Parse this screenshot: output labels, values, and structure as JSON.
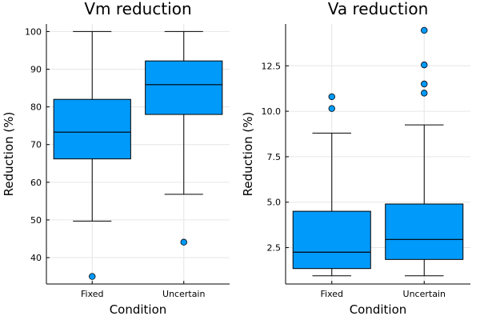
{
  "chart_data": [
    {
      "type": "box",
      "title": "Vm reduction",
      "xlabel": "Condition",
      "ylabel": "Reduction (%)",
      "categories": [
        "Fixed",
        "Uncertain"
      ],
      "ylim": [
        33,
        102
      ],
      "yticks": [
        40,
        50,
        60,
        70,
        80,
        90,
        100
      ],
      "ytick_labels": [
        "40",
        "50",
        "60",
        "70",
        "80",
        "90",
        "100"
      ],
      "grid": true,
      "color": "#009AFA",
      "boxes": [
        {
          "category": "Fixed",
          "whisker_low": 49.7,
          "q1": 66.2,
          "median": 73.3,
          "q3": 82.0,
          "whisker_high": 100.0,
          "outliers": [
            35.0
          ]
        },
        {
          "category": "Uncertain",
          "whisker_low": 56.8,
          "q1": 78.0,
          "median": 85.9,
          "q3": 92.2,
          "whisker_high": 100.0,
          "outliers": [
            44.1
          ]
        }
      ]
    },
    {
      "type": "box",
      "title": "Va reduction",
      "xlabel": "Condition",
      "ylabel": "Reduction (%)",
      "categories": [
        "Fixed",
        "Uncertain"
      ],
      "ylim": [
        0.5,
        14.8
      ],
      "yticks": [
        2.5,
        5.0,
        7.5,
        10.0,
        12.5
      ],
      "ytick_labels": [
        "2.5",
        "5.0",
        "7.5",
        "10.0",
        "12.5"
      ],
      "grid": true,
      "color": "#009AFA",
      "boxes": [
        {
          "category": "Fixed",
          "whisker_low": 0.95,
          "q1": 1.35,
          "median": 2.25,
          "q3": 4.5,
          "whisker_high": 8.8,
          "outliers": [
            10.15,
            10.8
          ]
        },
        {
          "category": "Uncertain",
          "whisker_low": 0.95,
          "q1": 1.85,
          "median": 2.95,
          "q3": 4.9,
          "whisker_high": 9.25,
          "outliers": [
            11.0,
            11.5,
            12.55,
            14.45
          ]
        }
      ]
    }
  ]
}
